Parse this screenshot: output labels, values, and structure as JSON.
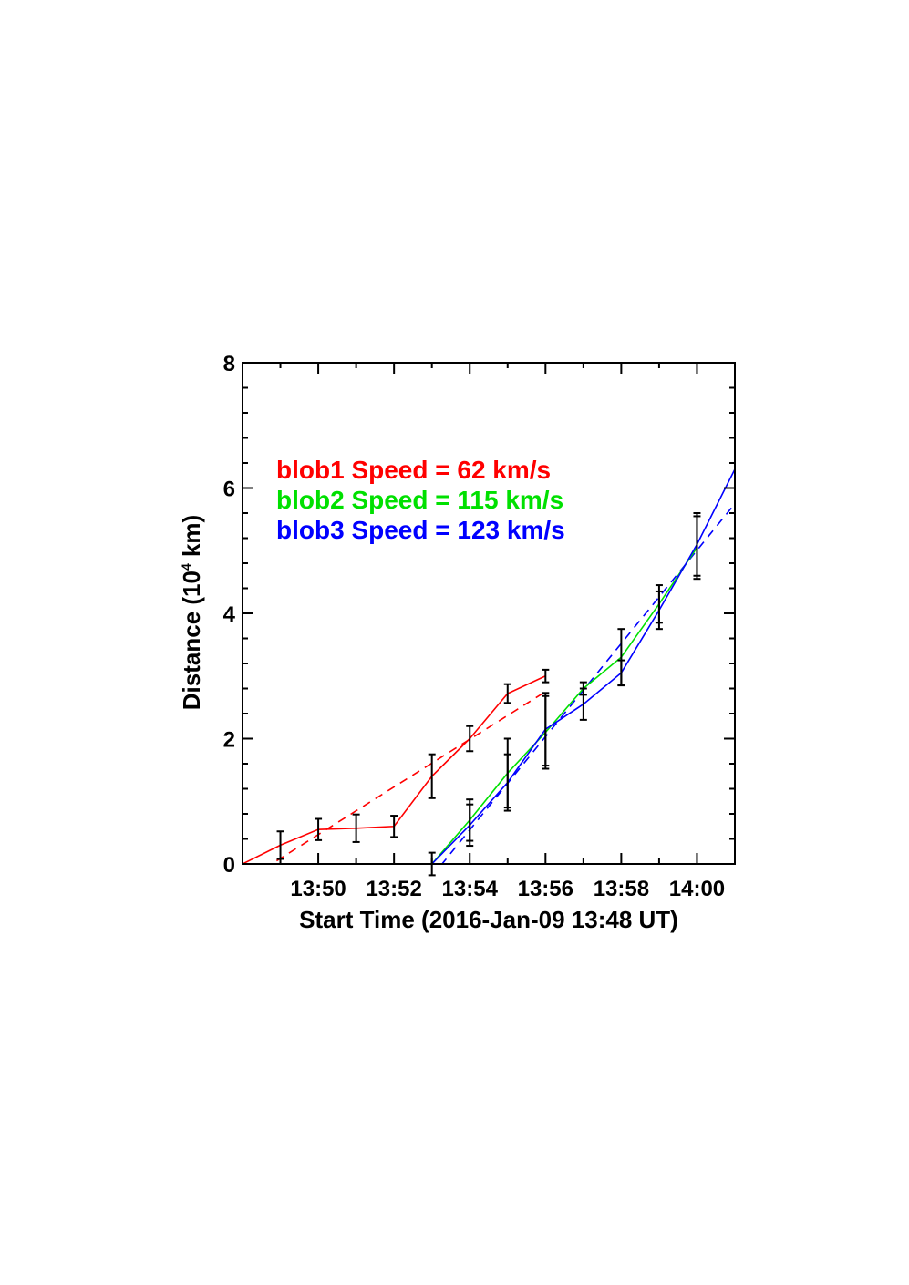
{
  "chart_data": {
    "type": "line",
    "xlabel": "Start Time (2016-Jan-09 13:48 UT)",
    "ylabel_main": "Distance (10",
    "ylabel_sup": "4",
    "ylabel_tail": " km)",
    "xlim": [
      0,
      13
    ],
    "ylim": [
      0,
      8
    ],
    "x_ticks": [
      {
        "value": 2,
        "label": "13:50"
      },
      {
        "value": 4,
        "label": "13:52"
      },
      {
        "value": 6,
        "label": "13:54"
      },
      {
        "value": 8,
        "label": "13:56"
      },
      {
        "value": 10,
        "label": "13:58"
      },
      {
        "value": 12,
        "label": "14:00"
      }
    ],
    "y_ticks": [
      {
        "value": 0,
        "label": "0"
      },
      {
        "value": 2,
        "label": "2"
      },
      {
        "value": 4,
        "label": "4"
      },
      {
        "value": 6,
        "label": "6"
      },
      {
        "value": 8,
        "label": "8"
      }
    ],
    "series": [
      {
        "name": "blob1",
        "color": "#ff0000",
        "x": [
          0,
          1,
          2,
          3,
          4,
          5,
          6,
          7,
          8
        ],
        "y": [
          0.0,
          0.3,
          0.55,
          0.57,
          0.6,
          1.4,
          2.0,
          2.72,
          3.0
        ],
        "err": [
          null,
          0.22,
          0.17,
          0.22,
          0.17,
          0.35,
          0.2,
          0.15,
          0.1
        ],
        "fit": {
          "x": [
            0.9,
            8.0
          ],
          "y": [
            0.05,
            2.75
          ]
        },
        "legend": "blob1 Speed = 62 km/s"
      },
      {
        "name": "blob2",
        "color": "#00e000",
        "x": [
          5,
          6,
          7,
          8,
          9,
          10,
          11,
          12
        ],
        "y": [
          0.0,
          0.7,
          1.45,
          2.1,
          2.8,
          3.3,
          4.15,
          5.05
        ],
        "err": [
          0.18,
          0.33,
          0.55,
          0.58,
          0.1,
          0.45,
          0.3,
          0.5
        ],
        "legend": "blob2 Speed = 115 km/s"
      },
      {
        "name": "blob3",
        "color": "#0000ff",
        "x": [
          5,
          6,
          7,
          8,
          9,
          10,
          11,
          12,
          13
        ],
        "y": [
          0.0,
          0.62,
          1.3,
          2.15,
          2.55,
          3.05,
          4.05,
          5.1,
          6.3
        ],
        "err": [
          null,
          0.33,
          0.45,
          0.58,
          0.25,
          0.2,
          0.3,
          0.5,
          null
        ],
        "fit": {
          "x": [
            5.0,
            13.0
          ],
          "y": [
            -0.2,
            5.75
          ]
        },
        "legend": "blob3 Speed = 123 km/s"
      }
    ],
    "grid": false,
    "legend_position": "top-left"
  }
}
